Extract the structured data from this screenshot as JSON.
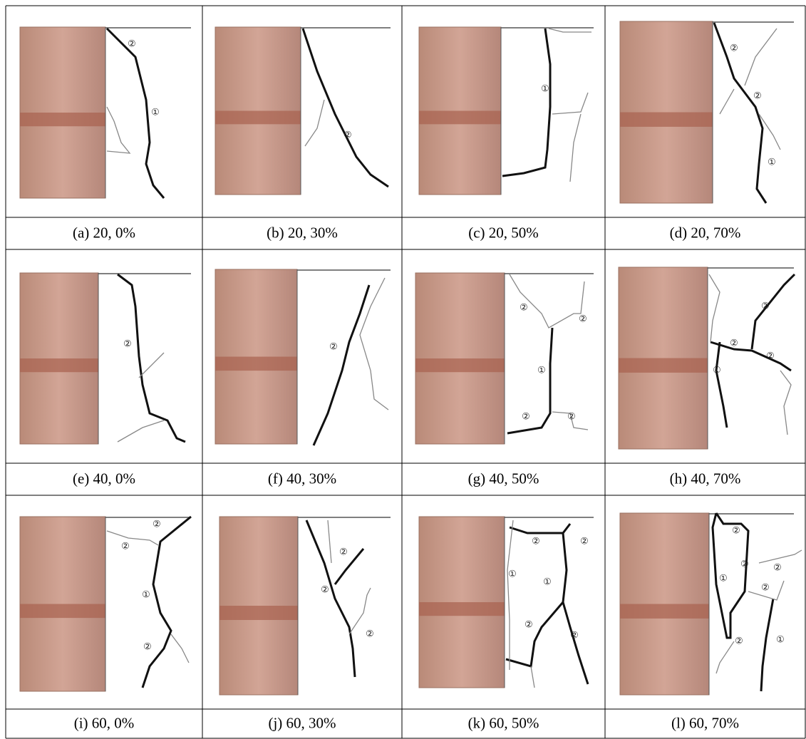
{
  "figure": {
    "panels": [
      {
        "caption": "(a) 20, 0%",
        "labels": [
          "②",
          "①"
        ]
      },
      {
        "caption": "(b) 20, 30%",
        "labels": [
          "②"
        ]
      },
      {
        "caption": "(c) 20, 50%",
        "labels": [
          "①"
        ]
      },
      {
        "caption": "(d) 20, 70%",
        "labels": [
          "②",
          "②",
          "①"
        ]
      },
      {
        "caption": "(e) 40, 0%",
        "labels": [
          "②"
        ]
      },
      {
        "caption": "(f) 40, 30%",
        "labels": [
          "②"
        ]
      },
      {
        "caption": "(g) 40, 50%",
        "labels": [
          "②",
          "②",
          "①",
          "②",
          "②"
        ]
      },
      {
        "caption": "(h) 40, 70%",
        "labels": [
          "②",
          "②",
          "②",
          "①"
        ]
      },
      {
        "caption": "(i) 60, 0%",
        "labels": [
          "②",
          "②",
          "①",
          "②"
        ]
      },
      {
        "caption": "(j) 60, 30%",
        "labels": [
          "②",
          "②",
          "②"
        ]
      },
      {
        "caption": "(k) 60, 50%",
        "labels": [
          "②",
          "②",
          "①",
          "①",
          "②",
          "②"
        ]
      },
      {
        "caption": "(l) 60, 70%",
        "labels": [
          "②",
          "②",
          "②",
          "①",
          "②",
          "②",
          "①"
        ]
      }
    ]
  }
}
